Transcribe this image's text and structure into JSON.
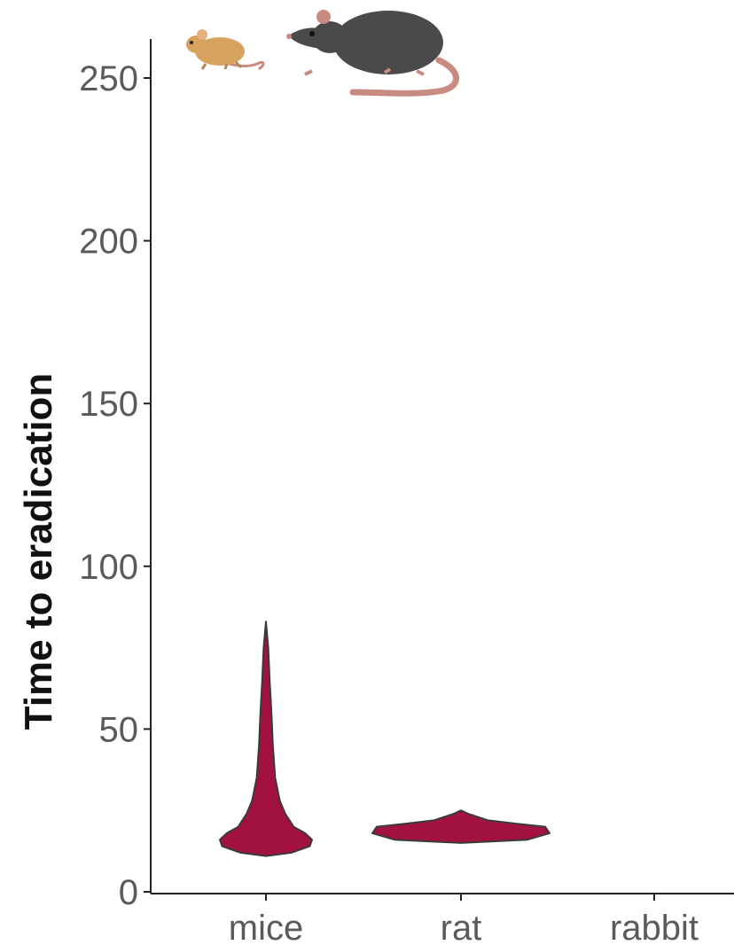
{
  "chart_data": {
    "type": "violin",
    "ylabel": "Time to eradication",
    "xlabel": "",
    "categories": [
      "mice",
      "rat",
      "rabbit"
    ],
    "ylim": [
      0,
      250
    ],
    "yticks": [
      0,
      50,
      100,
      150,
      200,
      250
    ],
    "fill_color": "#a3123f",
    "outline_color": "#3a3a3a",
    "violins": [
      {
        "category": "mice",
        "profile": [
          [
            11,
            0.0
          ],
          [
            12,
            0.55
          ],
          [
            14,
            0.95
          ],
          [
            16,
            1.0
          ],
          [
            18,
            0.85
          ],
          [
            20,
            0.6
          ],
          [
            24,
            0.42
          ],
          [
            28,
            0.3
          ],
          [
            35,
            0.2
          ],
          [
            45,
            0.15
          ],
          [
            55,
            0.12
          ],
          [
            65,
            0.08
          ],
          [
            75,
            0.05
          ],
          [
            83,
            0.0
          ]
        ]
      },
      {
        "category": "rat",
        "profile": [
          [
            15,
            0.0
          ],
          [
            16,
            0.75
          ],
          [
            18,
            1.0
          ],
          [
            20,
            0.95
          ],
          [
            21,
            0.6
          ],
          [
            22,
            0.3
          ],
          [
            24,
            0.08
          ],
          [
            25,
            0.0
          ]
        ]
      }
    ],
    "grid": false,
    "legend": "none"
  },
  "icons": [
    "mouse-icon",
    "rat-icon"
  ],
  "colors": {
    "mouse_body": "#d7a25e",
    "rat_body": "#4a4a4a",
    "tail": "#c98a82"
  }
}
